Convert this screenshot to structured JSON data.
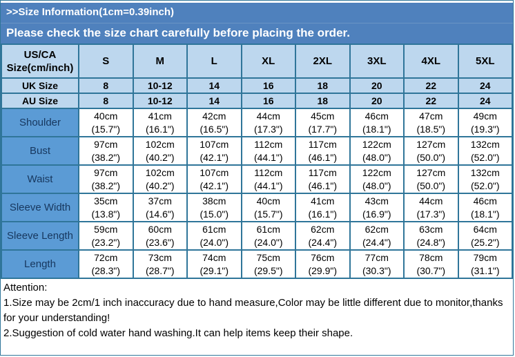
{
  "banner": {
    "title": ">>Size Information(1cm=0.39inch)",
    "subtitle": "Please check the size chart carefully before placing the order."
  },
  "colors": {
    "banner_blue": "#4f81bd",
    "header_light_blue": "#bdd7ee",
    "label_blue": "#5b9bd5",
    "label_text_navy": "#17375e",
    "grid_border": "#2f7599"
  },
  "table": {
    "corner_header_line1": "US/CA",
    "corner_header_line2": "Size(cm/inch)",
    "size_headers": [
      "S",
      "M",
      "L",
      "XL",
      "2XL",
      "3XL",
      "4XL",
      "5XL"
    ],
    "size_rows": [
      {
        "label": "UK Size",
        "values": [
          "8",
          "10-12",
          "14",
          "16",
          "18",
          "20",
          "22",
          "24"
        ]
      },
      {
        "label": "AU Size",
        "values": [
          "8",
          "10-12",
          "14",
          "16",
          "18",
          "20",
          "22",
          "24"
        ]
      }
    ],
    "measure_rows": [
      {
        "label": "Shoulder",
        "cells": [
          {
            "cm": "40cm",
            "in": "(15.7\")"
          },
          {
            "cm": "41cm",
            "in": "(16.1\")"
          },
          {
            "cm": "42cm",
            "in": "(16.5\")"
          },
          {
            "cm": "44cm",
            "in": "(17.3\")"
          },
          {
            "cm": "45cm",
            "in": "(17.7\")"
          },
          {
            "cm": "46cm",
            "in": "(18.1\")"
          },
          {
            "cm": "47cm",
            "in": "(18.5\")"
          },
          {
            "cm": "49cm",
            "in": "(19.3\")"
          }
        ]
      },
      {
        "label": "Bust",
        "cells": [
          {
            "cm": "97cm",
            "in": "(38.2\")"
          },
          {
            "cm": "102cm",
            "in": "(40.2\")"
          },
          {
            "cm": "107cm",
            "in": "(42.1\")"
          },
          {
            "cm": "112cm",
            "in": "(44.1\")"
          },
          {
            "cm": "117cm",
            "in": "(46.1\")"
          },
          {
            "cm": "122cm",
            "in": "(48.0\")"
          },
          {
            "cm": "127cm",
            "in": "(50.0\")"
          },
          {
            "cm": "132cm",
            "in": "(52.0\")"
          }
        ]
      },
      {
        "label": "Waist",
        "cells": [
          {
            "cm": "97cm",
            "in": "(38.2\")"
          },
          {
            "cm": "102cm",
            "in": "(40.2\")"
          },
          {
            "cm": "107cm",
            "in": "(42.1\")"
          },
          {
            "cm": "112cm",
            "in": "(44.1\")"
          },
          {
            "cm": "117cm",
            "in": "(46.1\")"
          },
          {
            "cm": "122cm",
            "in": "(48.0\")"
          },
          {
            "cm": "127cm",
            "in": "(50.0\")"
          },
          {
            "cm": "132cm",
            "in": "(52.0\")"
          }
        ]
      },
      {
        "label": "Sleeve Width",
        "cells": [
          {
            "cm": "35cm",
            "in": "(13.8\")"
          },
          {
            "cm": "37cm",
            "in": "(14.6\")"
          },
          {
            "cm": "38cm",
            "in": "(15.0\")"
          },
          {
            "cm": "40cm",
            "in": "(15.7\")"
          },
          {
            "cm": "41cm",
            "in": "(16.1\")"
          },
          {
            "cm": "43cm",
            "in": "(16.9\")"
          },
          {
            "cm": "44cm",
            "in": "(17.3\")"
          },
          {
            "cm": "46cm",
            "in": "(18.1\")"
          }
        ]
      },
      {
        "label": "Sleeve Length",
        "cells": [
          {
            "cm": "59cm",
            "in": "(23.2\")"
          },
          {
            "cm": "60cm",
            "in": "(23.6\")"
          },
          {
            "cm": "61cm",
            "in": "(24.0\")"
          },
          {
            "cm": "61cm",
            "in": "(24.0\")"
          },
          {
            "cm": "62cm",
            "in": "(24.4\")"
          },
          {
            "cm": "62cm",
            "in": "(24.4\")"
          },
          {
            "cm": "63cm",
            "in": "(24.8\")"
          },
          {
            "cm": "64cm",
            "in": "(25.2\")"
          }
        ]
      },
      {
        "label": "Length",
        "cells": [
          {
            "cm": "72cm",
            "in": "(28.3\")"
          },
          {
            "cm": "73cm",
            "in": "(28.7\")"
          },
          {
            "cm": "74cm",
            "in": "(29.1\")"
          },
          {
            "cm": "75cm",
            "in": "(29.5\")"
          },
          {
            "cm": "76cm",
            "in": "(29.9\")"
          },
          {
            "cm": "77cm",
            "in": "(30.3\")"
          },
          {
            "cm": "78cm",
            "in": "(30.7\")"
          },
          {
            "cm": "79cm",
            "in": "(31.1\")"
          }
        ]
      }
    ]
  },
  "attention": {
    "heading": "Attention:",
    "notes": [
      "1.Size may be 2cm/1 inch inaccuracy due to hand measure,Color may be little different due to monitor,thanks for your understanding!",
      "2.Suggestion of cold water hand washing.It can help items keep their shape."
    ]
  }
}
